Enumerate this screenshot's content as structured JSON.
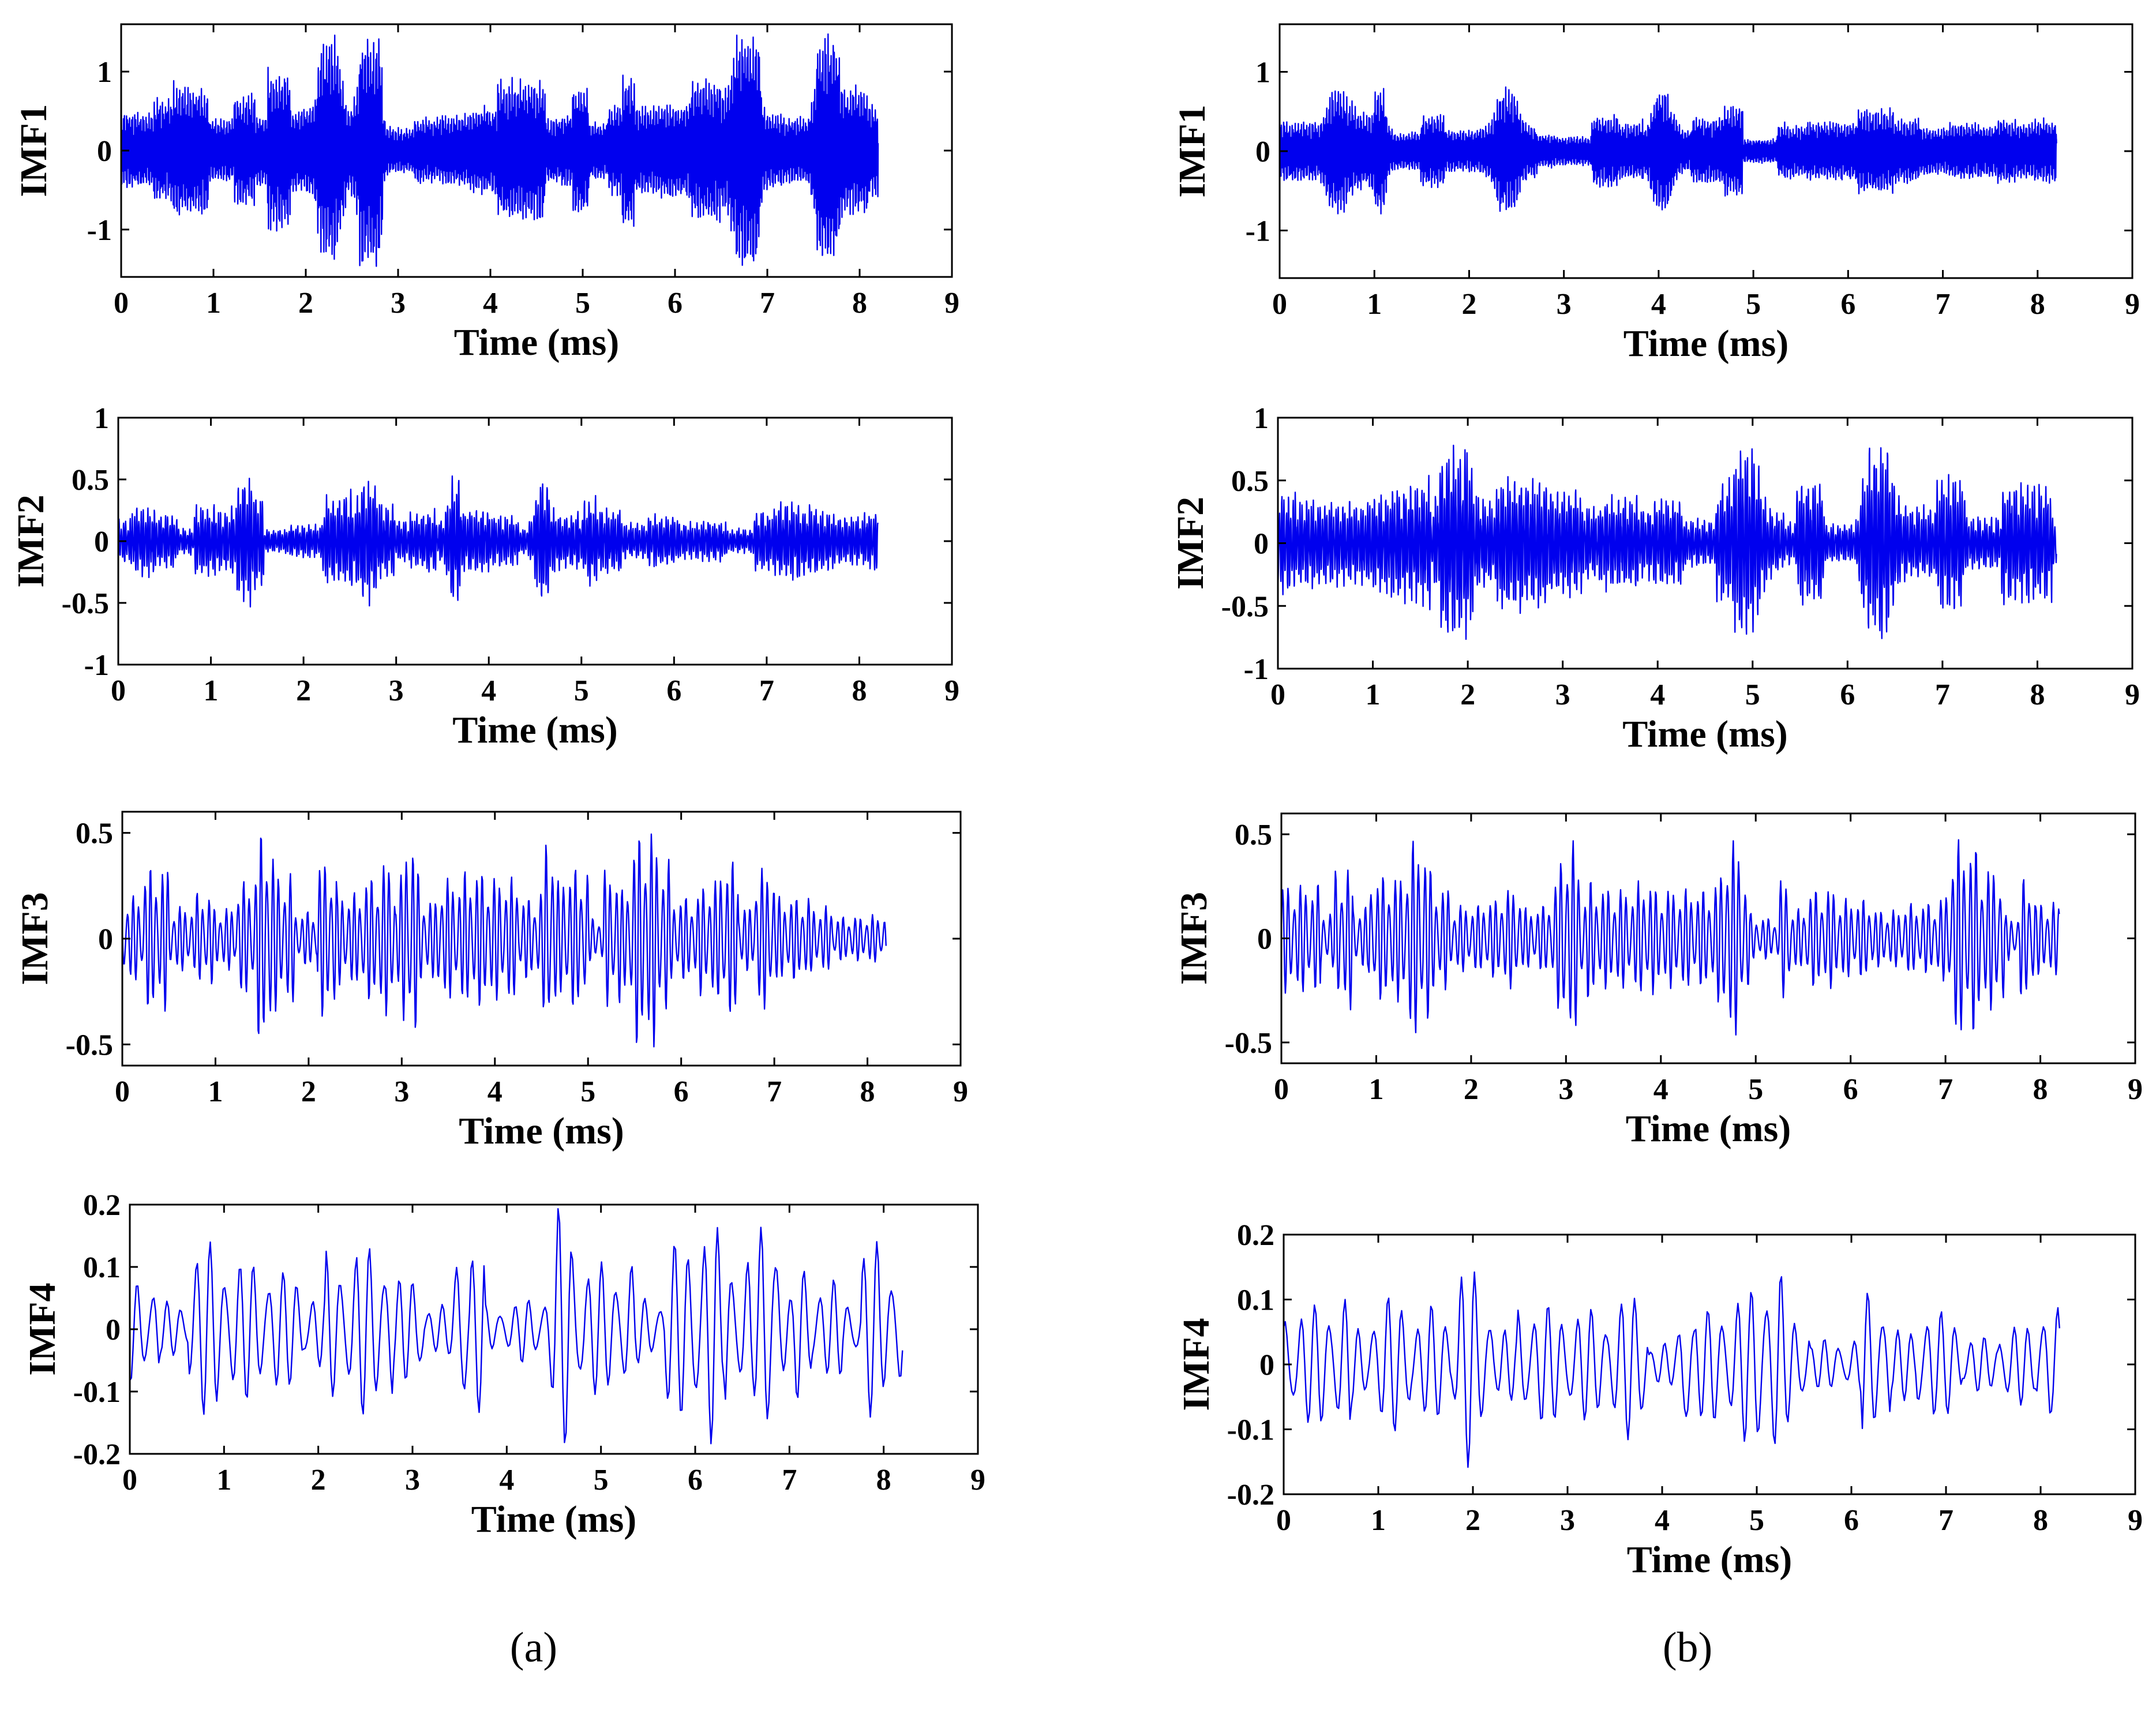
{
  "figure": {
    "panel_labels": [
      "(a)",
      "(b)"
    ]
  },
  "chart_data": [
    {
      "type": "line",
      "column": "a",
      "row": 1,
      "ylabel": "IMF1",
      "xlabel": "Time (ms)",
      "xlim": [
        0,
        9
      ],
      "ylim": [
        -1.6,
        1.6
      ],
      "xticks": [
        0,
        1,
        2,
        3,
        4,
        5,
        6,
        7,
        8,
        9
      ],
      "yticks": [
        -1,
        0,
        1
      ],
      "ytick_labels": [
        "-1",
        "0",
        "1"
      ],
      "signal": {
        "t_end": 8.2,
        "peak": 1.4,
        "band": "high",
        "color": "#0000ee"
      }
    },
    {
      "type": "line",
      "column": "a",
      "row": 2,
      "ylabel": "IMF2",
      "xlabel": "Time (ms)",
      "xlim": [
        0,
        9
      ],
      "ylim": [
        -1,
        1
      ],
      "xticks": [
        0,
        1,
        2,
        3,
        4,
        5,
        6,
        7,
        8,
        9
      ],
      "yticks": [
        -1,
        -0.5,
        0,
        0.5,
        1
      ],
      "ytick_labels": [
        "-1",
        "-0.5",
        "0",
        "0.5",
        "1"
      ],
      "signal": {
        "t_end": 8.2,
        "peak": 0.5,
        "band": "mid-high",
        "color": "#0000ee"
      }
    },
    {
      "type": "line",
      "column": "a",
      "row": 3,
      "ylabel": "IMF3",
      "xlabel": "Time (ms)",
      "xlim": [
        0,
        9
      ],
      "ylim": [
        -0.6,
        0.6
      ],
      "xticks": [
        0,
        1,
        2,
        3,
        4,
        5,
        6,
        7,
        8,
        9
      ],
      "yticks": [
        -0.5,
        0,
        0.5
      ],
      "ytick_labels": [
        "-0.5",
        "0",
        "0.5"
      ],
      "signal": {
        "t_end": 8.2,
        "peak": 0.52,
        "band": "mid",
        "color": "#0000ee"
      }
    },
    {
      "type": "line",
      "column": "a",
      "row": 4,
      "ylabel": "IMF4",
      "xlabel": "Time (ms)",
      "xlim": [
        0,
        9
      ],
      "ylim": [
        -0.2,
        0.2
      ],
      "xticks": [
        0,
        1,
        2,
        3,
        4,
        5,
        6,
        7,
        8,
        9
      ],
      "yticks": [
        -0.2,
        -0.1,
        0,
        0.1,
        0.2
      ],
      "ytick_labels": [
        "-0.2",
        "-0.1",
        "0",
        "0.1",
        "0.2"
      ],
      "signal": {
        "t_end": 8.2,
        "peak": 0.2,
        "band": "low",
        "color": "#0000ee"
      }
    },
    {
      "type": "line",
      "column": "b",
      "row": 1,
      "ylabel": "IMF1",
      "xlabel": "Time (ms)",
      "xlim": [
        0,
        9
      ],
      "ylim": [
        -1.6,
        1.6
      ],
      "xticks": [
        0,
        1,
        2,
        3,
        4,
        5,
        6,
        7,
        8,
        9
      ],
      "yticks": [
        -1,
        0,
        1
      ],
      "ytick_labels": [
        "-1",
        "0",
        "1"
      ],
      "signal": {
        "t_end": 8.2,
        "peak": 0.75,
        "band": "high",
        "color": "#0000ee"
      }
    },
    {
      "type": "line",
      "column": "b",
      "row": 2,
      "ylabel": "IMF2",
      "xlabel": "Time (ms)",
      "xlim": [
        0,
        9
      ],
      "ylim": [
        -1,
        1
      ],
      "xticks": [
        0,
        1,
        2,
        3,
        4,
        5,
        6,
        7,
        8,
        9
      ],
      "yticks": [
        -1,
        -0.5,
        0,
        0.5,
        1
      ],
      "ytick_labels": [
        "-1",
        "-0.5",
        "0",
        "0.5",
        "1"
      ],
      "signal": {
        "t_end": 8.2,
        "peak": 0.75,
        "band": "mid-high",
        "color": "#0000ee"
      }
    },
    {
      "type": "line",
      "column": "b",
      "row": 3,
      "ylabel": "IMF3",
      "xlabel": "Time (ms)",
      "xlim": [
        0,
        9
      ],
      "ylim": [
        -0.6,
        0.6
      ],
      "xticks": [
        0,
        1,
        2,
        3,
        4,
        5,
        6,
        7,
        8,
        9
      ],
      "yticks": [
        -0.5,
        0,
        0.5
      ],
      "ytick_labels": [
        "-0.5",
        "0",
        "0.5"
      ],
      "signal": {
        "t_end": 8.2,
        "peak": 0.48,
        "band": "mid",
        "color": "#0000ee"
      }
    },
    {
      "type": "line",
      "column": "b",
      "row": 4,
      "ylabel": "IMF4",
      "xlabel": "Time (ms)",
      "xlim": [
        0,
        9
      ],
      "ylim": [
        -0.2,
        0.2
      ],
      "xticks": [
        0,
        1,
        2,
        3,
        4,
        5,
        6,
        7,
        8,
        9
      ],
      "yticks": [
        -0.2,
        -0.1,
        0,
        0.1,
        0.2
      ],
      "ytick_labels": [
        "-0.2",
        "-0.1",
        "0",
        "0.1",
        "0.2"
      ],
      "signal": {
        "t_end": 8.2,
        "peak": 0.16,
        "band": "low",
        "color": "#0000ee"
      }
    }
  ]
}
